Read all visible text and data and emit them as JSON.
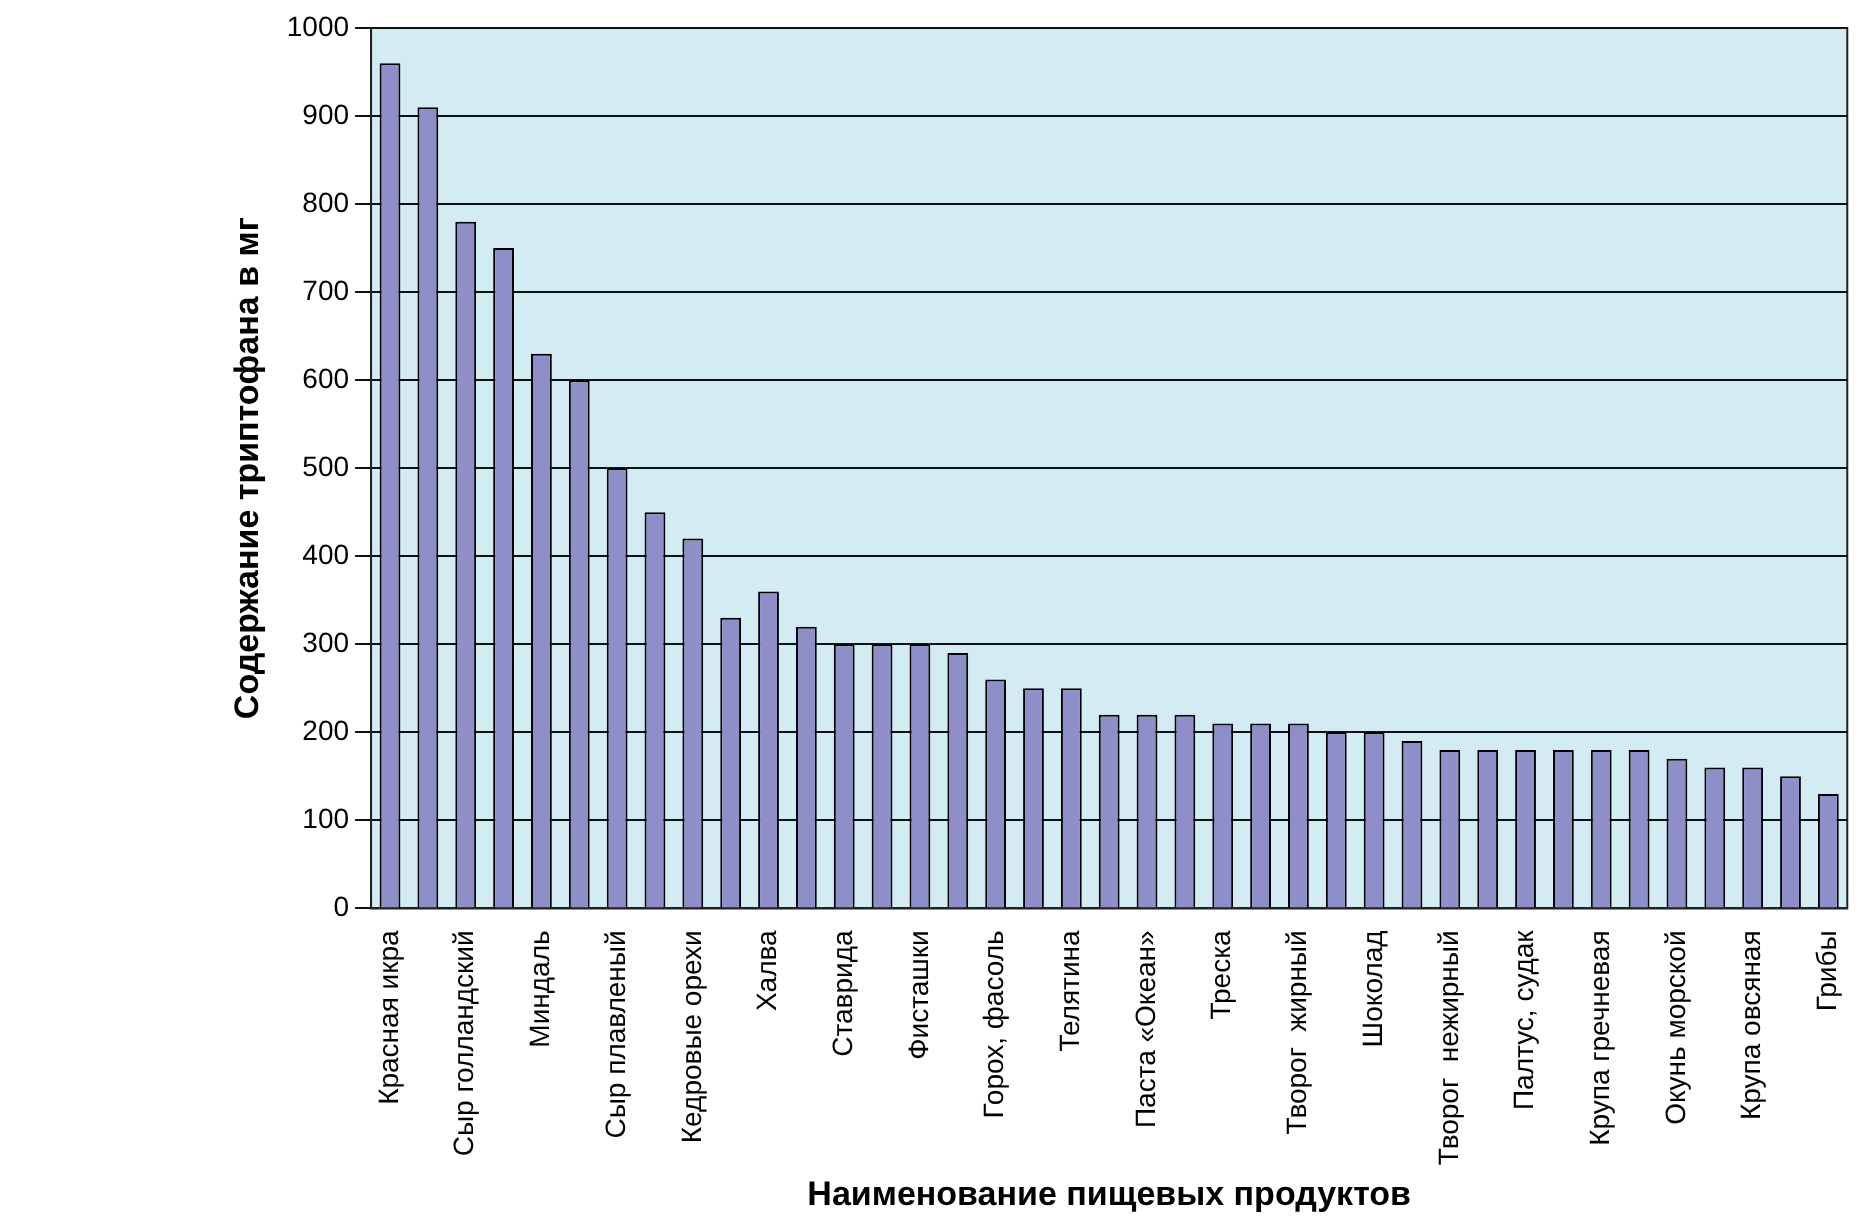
{
  "chart_data": {
    "type": "bar",
    "xlabel": "Наименование пищевых продуктов",
    "ylabel": "Содержание триптофана в мг",
    "categories": [
      "Красная икра",
      null,
      "Сыр голландский",
      null,
      "Миндаль",
      null,
      "Сыр плавленый",
      null,
      "Кедровые орехи",
      null,
      "Халва",
      null,
      "Ставрида",
      null,
      "Фисташки",
      null,
      "Горох, фасоль",
      null,
      "Телятина",
      null,
      "Паста «Океан»",
      null,
      "Треска",
      null,
      "Творог  жирный",
      null,
      "Шоколад",
      null,
      "Творог  нежирный",
      null,
      "Палтус, судак",
      null,
      "Крупа гречневая",
      null,
      "Окунь морской",
      null,
      "Крупа овсяная",
      null,
      "Грибы"
    ],
    "values": [
      960,
      910,
      780,
      750,
      630,
      600,
      500,
      450,
      420,
      330,
      360,
      320,
      300,
      300,
      300,
      290,
      260,
      250,
      250,
      220,
      220,
      220,
      210,
      210,
      210,
      200,
      200,
      190,
      180,
      180,
      180,
      180,
      180,
      180,
      170,
      160,
      160,
      150,
      130
    ],
    "color": "#8e8ec8",
    "ylim": [
      0,
      1000
    ],
    "yticks": [
      0,
      100,
      200,
      300,
      400,
      500,
      600,
      700,
      800,
      900,
      1000
    ],
    "grid": "y",
    "legend": false
  }
}
